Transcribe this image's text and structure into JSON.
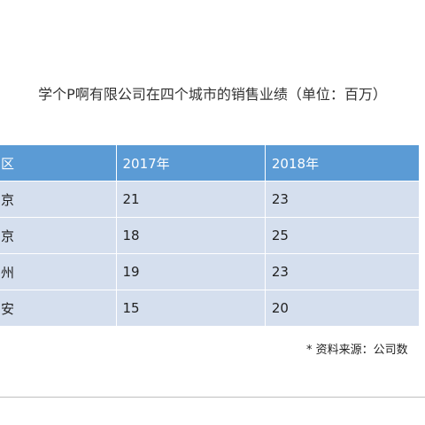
{
  "title": "学个P啊有限公司在四个城市的销售业绩（单位：百万）",
  "table": {
    "headers": [
      "区",
      "2017年",
      "2018年"
    ],
    "rows": [
      {
        "region": "京",
        "y2017": "21",
        "y2018": "23"
      },
      {
        "region": "京",
        "y2017": "18",
        "y2018": "25"
      },
      {
        "region": "州",
        "y2017": "19",
        "y2018": "23"
      },
      {
        "region": "安",
        "y2017": "15",
        "y2018": "20"
      }
    ]
  },
  "source_note": "* 资料来源：公司数",
  "colors": {
    "header_bg": "#5b9bd5",
    "row_bg": "#d5dfee"
  }
}
